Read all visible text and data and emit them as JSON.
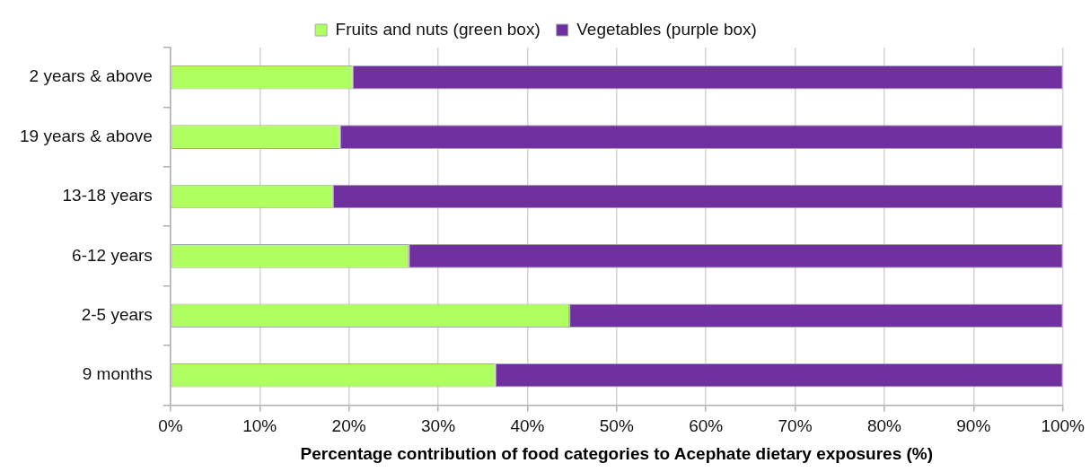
{
  "chart_data": {
    "type": "bar",
    "orientation": "horizontal",
    "stacked": true,
    "xlabel": "Percentage contribution of food categories to Acephate dietary exposures (%)",
    "categories": [
      "2 years & above",
      "19 years & above",
      "13-18 years",
      "6-12 years",
      "2-5 years",
      "9 months"
    ],
    "series": [
      {
        "name": "Fruits and nuts (green box)",
        "color": "#b0ff60",
        "values": [
          20.4,
          19.0,
          18.2,
          26.7,
          44.7,
          36.4
        ]
      },
      {
        "name": "Vegetables (purple box)",
        "color": "#7030a0",
        "values": [
          79.6,
          81.0,
          81.8,
          73.3,
          55.3,
          63.6
        ]
      }
    ],
    "xlim": [
      0,
      100
    ],
    "xticks": [
      {
        "value": 0,
        "label": "0%"
      },
      {
        "value": 10,
        "label": "10%"
      },
      {
        "value": 20,
        "label": "20%"
      },
      {
        "value": 30,
        "label": "30%"
      },
      {
        "value": 40,
        "label": "40%"
      },
      {
        "value": 50,
        "label": "50%"
      },
      {
        "value": 60,
        "label": "60%"
      },
      {
        "value": 70,
        "label": "70%"
      },
      {
        "value": 80,
        "label": "80%"
      },
      {
        "value": 90,
        "label": "90%"
      },
      {
        "value": 100,
        "label": "100%"
      }
    ],
    "grid": "x",
    "legend": "top"
  }
}
